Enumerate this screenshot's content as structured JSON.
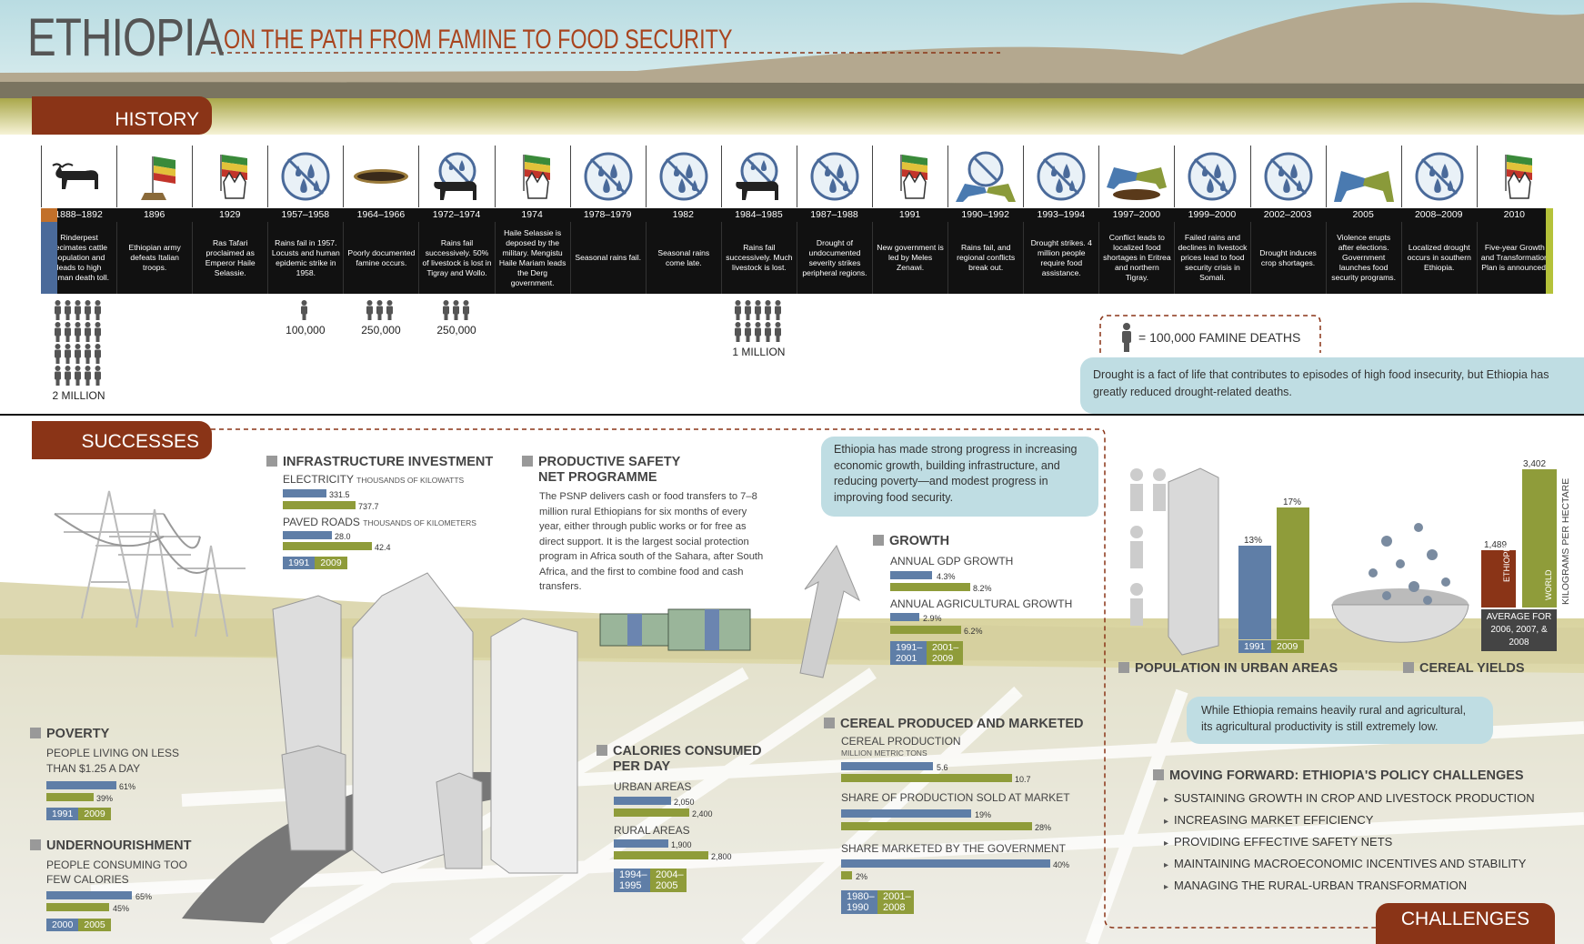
{
  "title": "ETHIOPIA",
  "subtitle": "ON THE PATH FROM FAMINE TO FOOD SECURITY",
  "tabs": {
    "history": "HISTORY",
    "successes": "SUCCESSES",
    "challenges": "CHALLENGES"
  },
  "timeline": [
    {
      "year": "1888–1892",
      "icon": "cattle",
      "text": "Rinderpest decimates cattle population and leads to high human death toll."
    },
    {
      "year": "1896",
      "icon": "flag",
      "text": "Ethiopian army defeats Italian troops."
    },
    {
      "year": "1929",
      "icon": "flag-crown",
      "text": "Ras Tafari proclaimed as Emperor Haile Selassie."
    },
    {
      "year": "1957–1958",
      "icon": "no-rain",
      "text": "Rains fail in 1957. Locusts and human epidemic strike in 1958."
    },
    {
      "year": "1964–1966",
      "icon": "hole",
      "text": "Poorly documented famine occurs."
    },
    {
      "year": "1972–1974",
      "icon": "no-rain-cattle",
      "text": "Rains fail successively. 50% of livestock is lost in Tigray and Wollo."
    },
    {
      "year": "1974",
      "icon": "flag-crown",
      "text": "Haile Selassie is deposed by the military. Mengistu Haile Mariam leads the Derg government."
    },
    {
      "year": "1978–1979",
      "icon": "no-rain",
      "text": "Seasonal rains fail."
    },
    {
      "year": "1982",
      "icon": "no-rain",
      "text": "Seasonal rains come late."
    },
    {
      "year": "1984–1985",
      "icon": "no-rain-cattle",
      "text": "Rains fail successively. Much livestock is lost."
    },
    {
      "year": "1987–1988",
      "icon": "no-rain",
      "text": "Drought of undocumented severity strikes peripheral regions."
    },
    {
      "year": "1991",
      "icon": "flag-crown",
      "text": "New government is led by Meles Zenawi."
    },
    {
      "year": "1990–1992",
      "icon": "no-rain-arms",
      "text": "Rains fail, and regional conflicts break out."
    },
    {
      "year": "1993–1994",
      "icon": "no-rain",
      "text": "Drought strikes. 4 million people require food assistance."
    },
    {
      "year": "1997–2000",
      "icon": "arms-hole",
      "text": "Conflict leads to localized food shortages in Eritrea and northern Tigray."
    },
    {
      "year": "1999–2000",
      "icon": "no-rain",
      "text": "Failed rains and declines in livestock prices lead to food security crisis in Somali."
    },
    {
      "year": "2002–2003",
      "icon": "no-rain",
      "text": "Drought induces crop shortages."
    },
    {
      "year": "2005",
      "icon": "arms",
      "text": "Violence erupts after elections. Government launches food security programs."
    },
    {
      "year": "2008–2009",
      "icon": "no-rain",
      "text": "Localized drought occurs in southern Ethiopia."
    },
    {
      "year": "2010",
      "icon": "flag-crown",
      "text": "Five-year Growth and Transformation Plan is announced."
    }
  ],
  "deaths": [
    {
      "label": "2 MILLION",
      "count": 20,
      "col": 0
    },
    {
      "label": "100,000",
      "count": 1,
      "col": 3
    },
    {
      "label": "250,000",
      "count": 3,
      "col": 4
    },
    {
      "label": "250,000",
      "count": 3,
      "col": 5
    },
    {
      "label": "1 MILLION",
      "count": 10,
      "col": 9
    }
  ],
  "death_legend": "= 100,000 FAMINE DEATHS",
  "note_history": "Drought is a fact of life that contributes to episodes of high food insecurity, but Ethiopia has greatly reduced drought-related deaths.",
  "note_successes": "Ethiopia has made strong progress in increasing economic growth, building infrastructure, and reducing poverty—and modest progress in improving food security.",
  "note_challenges": "While Ethiopia remains heavily rural and agricultural, its agricultural productivity is still extremely low.",
  "infra": {
    "title": "INFRASTRUCTURE INVESTMENT",
    "elec_label": "ELECTRICITY",
    "elec_unit": "THOUSANDS OF KILOWATTS",
    "elec": [
      "331.5",
      "737.7"
    ],
    "roads_label": "PAVED ROADS",
    "roads_unit": "THOUSANDS OF KILOMETERS",
    "roads": [
      "28.0",
      "42.4"
    ],
    "legend": [
      "1991",
      "2009"
    ]
  },
  "psnp": {
    "title1": "PRODUCTIVE SAFETY",
    "title2": "NET PROGRAMME",
    "text": "The PSNP delivers cash or food transfers to 7–8 million rural Ethiopians for six months of every year, either through public works or for free as direct support. It is the largest social protection program in Africa south of the Sahara, after South Africa, and the first to combine food and cash transfers."
  },
  "growth": {
    "title": "GROWTH",
    "gdp_label": "ANNUAL GDP GROWTH",
    "gdp": [
      "4.3%",
      "8.2%"
    ],
    "agr_label": "ANNUAL AGRICULTURAL GROWTH",
    "agr": [
      "2.9%",
      "6.2%"
    ],
    "legend": [
      "1991–2001",
      "2001–2009"
    ]
  },
  "urban": {
    "title": "POPULATION IN URBAN AREAS",
    "values": [
      "13%",
      "17%"
    ],
    "legend": [
      "1991",
      "2009"
    ]
  },
  "cereal_yield": {
    "title": "CEREAL YIELDS",
    "ethiopia": "1,489",
    "world": "3,402",
    "eth_label": "ETHIOPIA",
    "world_label": "WORLD",
    "unit": "KILOGRAMS PER HECTARE",
    "avg": "AVERAGE FOR 2006, 2007, & 2008"
  },
  "poverty": {
    "title": "POVERTY",
    "desc": "PEOPLE LIVING ON LESS THAN $1.25 A DAY",
    "values": [
      "61%",
      "39%"
    ],
    "legend": [
      "1991",
      "2009"
    ]
  },
  "undernourish": {
    "title": "UNDERNOURISHMENT",
    "desc": "PEOPLE CONSUMING TOO FEW CALORIES",
    "values": [
      "65%",
      "45%"
    ],
    "legend": [
      "2000",
      "2005"
    ]
  },
  "calories": {
    "title1": "CALORIES CONSUMED",
    "title2": "PER DAY",
    "urban_label": "URBAN AREAS",
    "urban": [
      "2,050",
      "2,400"
    ],
    "rural_label": "RURAL AREAS",
    "rural": [
      "1,900",
      "2,800"
    ],
    "legend": [
      "1994–1995",
      "2004–2005"
    ]
  },
  "cereal": {
    "title": "CEREAL PRODUCED AND MARKETED",
    "prod_label": "CEREAL PRODUCTION",
    "prod_unit": "MILLION METRIC TONS",
    "prod": [
      "5.6",
      "10.7"
    ],
    "share_label": "SHARE OF PRODUCTION SOLD AT MARKET",
    "share": [
      "19%",
      "28%"
    ],
    "gov_label": "SHARE MARKETED BY THE GOVERNMENT",
    "gov": [
      "40%",
      "2%"
    ],
    "legend": [
      "1980–1990",
      "2001–2008"
    ]
  },
  "challenges": {
    "title": "MOVING FORWARD: ETHIOPIA'S POLICY CHALLENGES",
    "items": [
      "SUSTAINING GROWTH IN CROP AND LIVESTOCK PRODUCTION",
      "INCREASING MARKET EFFICIENCY",
      "PROVIDING EFFECTIVE SAFETY NETS",
      "MAINTAINING MACROECONOMIC INCENTIVES AND STABILITY",
      "MANAGING THE RURAL-URBAN TRANSFORMATION"
    ]
  },
  "colors": {
    "blue": "#5f7ea7",
    "green": "#8f9c3a",
    "rust": "#8a3417",
    "sky": "#bfdde3"
  }
}
